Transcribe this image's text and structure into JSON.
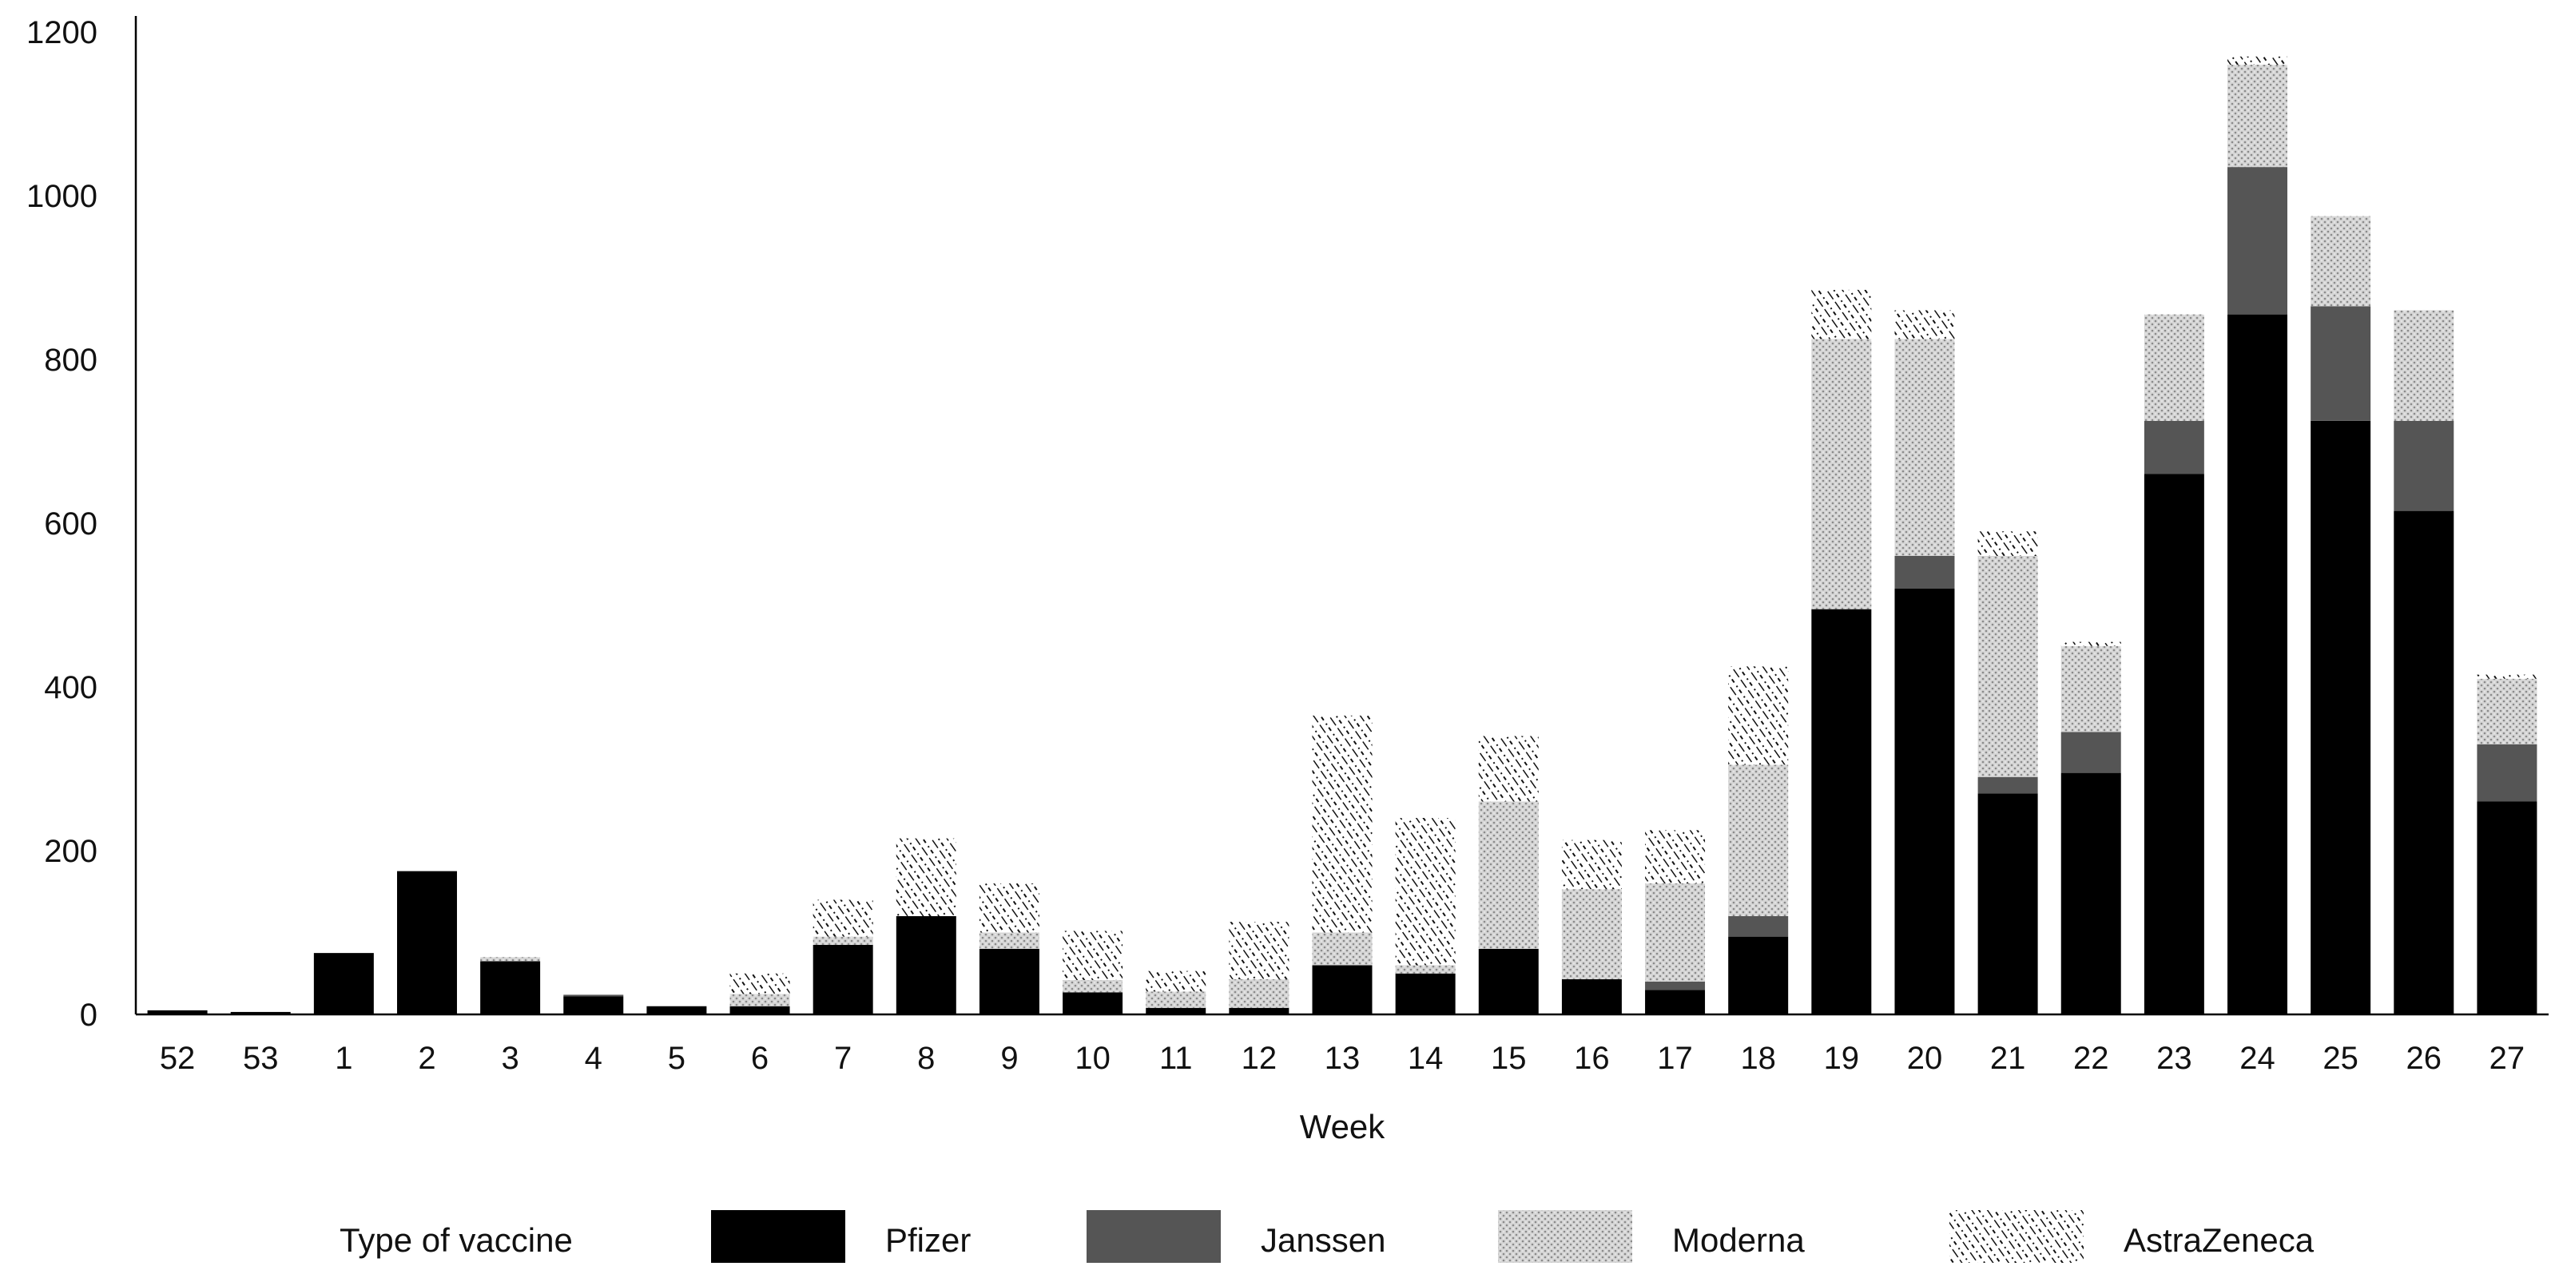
{
  "chart_data": {
    "type": "bar",
    "stacked": true,
    "title": "",
    "xlabel": "Week",
    "ylabel": "",
    "ylim": [
      0,
      1200
    ],
    "yticks": [
      0,
      200,
      400,
      600,
      800,
      1000,
      1200
    ],
    "grid": false,
    "legend_title": "Type of vaccine",
    "legend_position": "bottom",
    "categories": [
      "52",
      "53",
      "1",
      "2",
      "3",
      "4",
      "5",
      "6",
      "7",
      "8",
      "9",
      "10",
      "11",
      "12",
      "13",
      "14",
      "15",
      "16",
      "17",
      "18",
      "19",
      "20",
      "21",
      "22",
      "23",
      "24",
      "25",
      "26",
      "27"
    ],
    "series": [
      {
        "name": "Pfizer",
        "fill": "solid",
        "color": "#000000",
        "values": [
          5,
          3,
          75,
          175,
          65,
          22,
          10,
          10,
          85,
          120,
          80,
          27,
          8,
          8,
          60,
          50,
          80,
          43,
          30,
          95,
          495,
          520,
          270,
          295,
          660,
          855,
          725,
          615,
          260
        ]
      },
      {
        "name": "Janssen",
        "fill": "solid",
        "color": "#555555",
        "values": [
          0,
          0,
          0,
          0,
          0,
          2,
          0,
          0,
          0,
          0,
          0,
          0,
          0,
          0,
          0,
          0,
          0,
          0,
          10,
          25,
          0,
          40,
          20,
          50,
          65,
          180,
          140,
          110,
          70
        ]
      },
      {
        "name": "Moderna",
        "fill": "dots",
        "color": "#bbbbbb",
        "values": [
          0,
          0,
          0,
          0,
          5,
          0,
          0,
          15,
          10,
          0,
          20,
          15,
          20,
          35,
          40,
          10,
          180,
          110,
          120,
          185,
          330,
          265,
          270,
          105,
          130,
          125,
          110,
          135,
          80
        ]
      },
      {
        "name": "AstraZeneca",
        "fill": "hatch",
        "color": "#000000",
        "values": [
          0,
          0,
          0,
          0,
          0,
          0,
          0,
          25,
          45,
          95,
          60,
          60,
          25,
          70,
          265,
          180,
          80,
          60,
          65,
          120,
          60,
          35,
          30,
          5,
          0,
          10,
          0,
          0,
          5
        ]
      }
    ]
  }
}
